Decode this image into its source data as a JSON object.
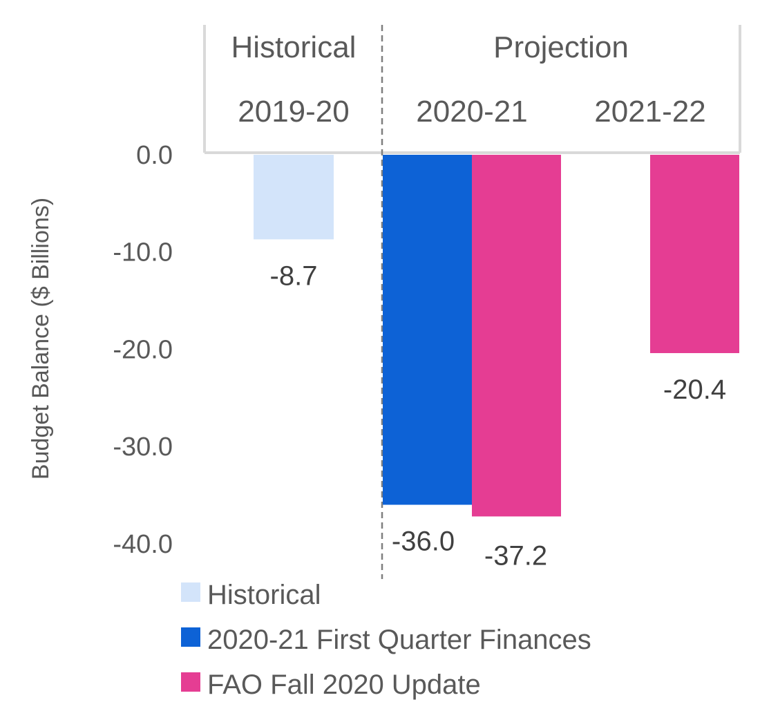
{
  "chart_data": {
    "type": "bar",
    "ylabel": "Budget Balance ($ Billions)",
    "ylim": [
      -40,
      0
    ],
    "yticks": [
      "0.0",
      "-10.0",
      "-20.0",
      "-30.0",
      "-40.0"
    ],
    "grid": false,
    "group_headers": [
      {
        "label": "Historical",
        "categories": [
          "2019-20"
        ]
      },
      {
        "label": "Projection",
        "categories": [
          "2020-21",
          "2021-22"
        ]
      }
    ],
    "categories": [
      "2019-20",
      "2020-21",
      "2021-22"
    ],
    "series": [
      {
        "name": "Historical",
        "color": "#d3e4fa",
        "values": [
          -8.7,
          null,
          null
        ],
        "labels": [
          "-8.7",
          null,
          null
        ]
      },
      {
        "name": "2020-21 First Quarter Finances",
        "color": "#0d62d6",
        "values": [
          null,
          -36.0,
          null
        ],
        "labels": [
          null,
          "-36.0",
          null
        ]
      },
      {
        "name": "FAO Fall 2020 Update",
        "color": "#e53d93",
        "values": [
          null,
          -37.2,
          -20.4
        ],
        "labels": [
          null,
          "-37.2",
          "-20.4"
        ]
      }
    ],
    "legend_position": "bottom-left"
  }
}
